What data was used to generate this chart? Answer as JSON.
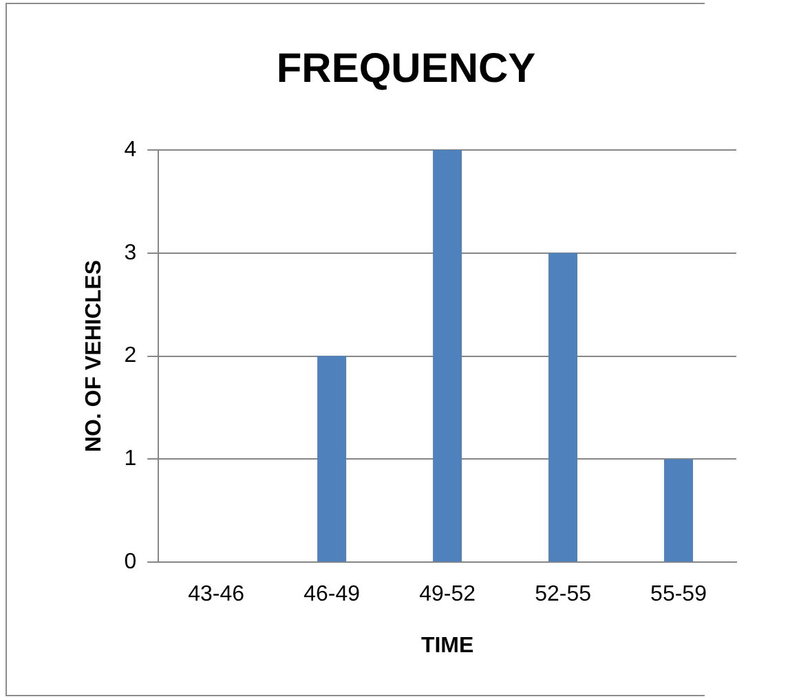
{
  "chart_data": {
    "type": "bar",
    "title": "FREQUENCY",
    "xlabel": "TIME",
    "ylabel": "NO. OF VEHICLES",
    "categories": [
      "43-46",
      "46-49",
      "49-52",
      "52-55",
      "55-59"
    ],
    "values": [
      0,
      2,
      4,
      3,
      1
    ],
    "color": "#4f81bd",
    "ylim": [
      0,
      4
    ],
    "yticks": [
      0,
      1,
      2,
      3,
      4
    ],
    "grid": "y",
    "legend": false
  }
}
